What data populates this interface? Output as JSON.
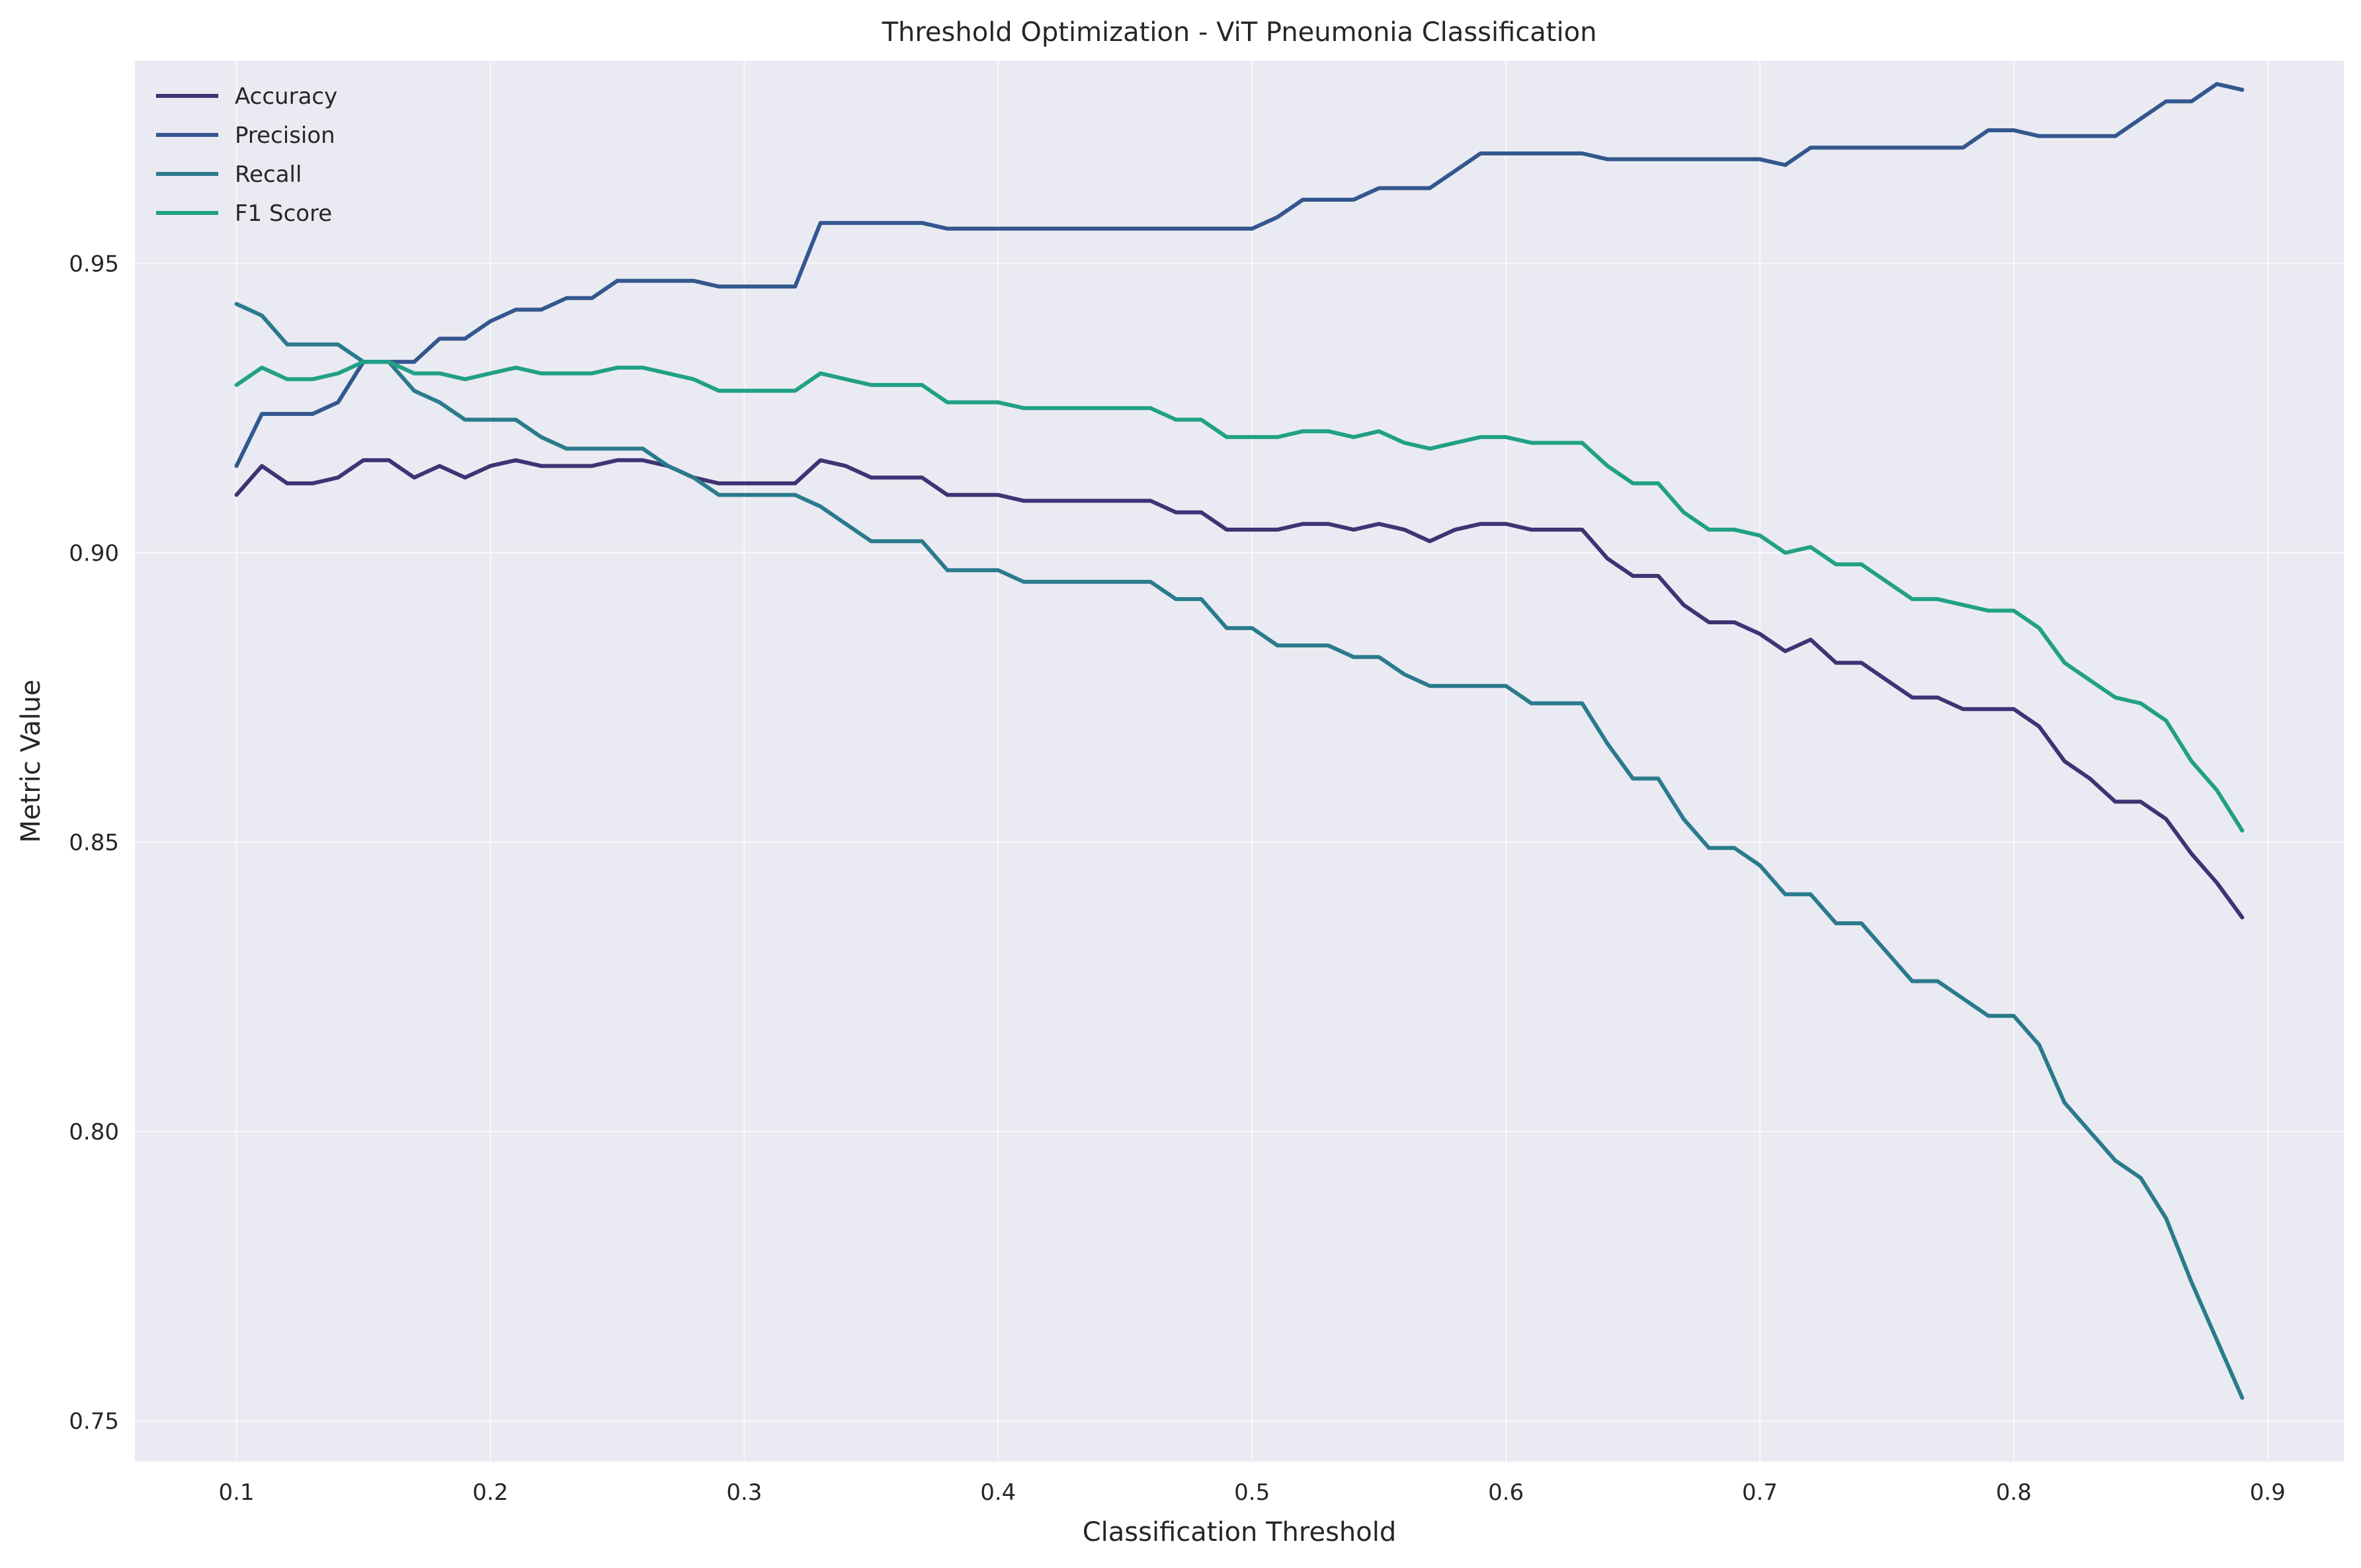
{
  "chart_data": {
    "type": "line",
    "title": "Threshold Optimization - ViT Pneumonia Classification",
    "xlabel": "Classification Threshold",
    "ylabel": "Metric Value",
    "xlim": [
      0.06,
      0.93
    ],
    "ylim": [
      0.743,
      0.985
    ],
    "xticks": [
      0.1,
      0.2,
      0.3,
      0.4,
      0.5,
      0.6,
      0.7,
      0.8,
      0.9
    ],
    "xtick_labels": [
      "0.1",
      "0.2",
      "0.3",
      "0.4",
      "0.5",
      "0.6",
      "0.7",
      "0.8",
      "0.9"
    ],
    "yticks": [
      0.75,
      0.8,
      0.85,
      0.9,
      0.95
    ],
    "ytick_labels": [
      "0.75",
      "0.80",
      "0.85",
      "0.90",
      "0.95"
    ],
    "grid": true,
    "legend_position": "top-left",
    "background_color": "#eaeaf2",
    "x": [
      0.1,
      0.11,
      0.12,
      0.13,
      0.14,
      0.15,
      0.16,
      0.17,
      0.18,
      0.19,
      0.2,
      0.21,
      0.22,
      0.23,
      0.24,
      0.25,
      0.26,
      0.27,
      0.28,
      0.29,
      0.3,
      0.31,
      0.32,
      0.33,
      0.34,
      0.35,
      0.36,
      0.37,
      0.38,
      0.39,
      0.4,
      0.41,
      0.42,
      0.43,
      0.44,
      0.45,
      0.46,
      0.47,
      0.48,
      0.49,
      0.5,
      0.51,
      0.52,
      0.53,
      0.54,
      0.55,
      0.56,
      0.57,
      0.58,
      0.59,
      0.6,
      0.61,
      0.62,
      0.63,
      0.64,
      0.65,
      0.66,
      0.67,
      0.68,
      0.69,
      0.7,
      0.71,
      0.72,
      0.73,
      0.74,
      0.75,
      0.76,
      0.77,
      0.78,
      0.79,
      0.8,
      0.81,
      0.82,
      0.83,
      0.84,
      0.85,
      0.86,
      0.87,
      0.88,
      0.89
    ],
    "series": [
      {
        "name": "Accuracy",
        "color": "#3e3374",
        "values": [
          0.91,
          0.915,
          0.912,
          0.912,
          0.913,
          0.916,
          0.916,
          0.913,
          0.915,
          0.913,
          0.915,
          0.916,
          0.915,
          0.915,
          0.915,
          0.916,
          0.916,
          0.915,
          0.913,
          0.912,
          0.912,
          0.912,
          0.912,
          0.916,
          0.915,
          0.913,
          0.913,
          0.913,
          0.91,
          0.91,
          0.91,
          0.909,
          0.909,
          0.909,
          0.909,
          0.909,
          0.909,
          0.907,
          0.907,
          0.904,
          0.904,
          0.904,
          0.905,
          0.905,
          0.904,
          0.905,
          0.904,
          0.902,
          0.904,
          0.905,
          0.905,
          0.904,
          0.904,
          0.904,
          0.899,
          0.896,
          0.896,
          0.891,
          0.888,
          0.888,
          0.886,
          0.883,
          0.885,
          0.881,
          0.881,
          0.878,
          0.875,
          0.875,
          0.873,
          0.873,
          0.873,
          0.87,
          0.864,
          0.861,
          0.857,
          0.857,
          0.854,
          0.848,
          0.843,
          0.837
        ]
      },
      {
        "name": "Precision",
        "color": "#33578e",
        "values": [
          0.915,
          0.924,
          0.924,
          0.924,
          0.926,
          0.933,
          0.933,
          0.933,
          0.937,
          0.937,
          0.94,
          0.942,
          0.942,
          0.944,
          0.944,
          0.947,
          0.947,
          0.947,
          0.947,
          0.946,
          0.946,
          0.946,
          0.946,
          0.957,
          0.957,
          0.957,
          0.957,
          0.957,
          0.956,
          0.956,
          0.956,
          0.956,
          0.956,
          0.956,
          0.956,
          0.956,
          0.956,
          0.956,
          0.956,
          0.956,
          0.956,
          0.958,
          0.961,
          0.961,
          0.961,
          0.963,
          0.963,
          0.963,
          0.966,
          0.969,
          0.969,
          0.969,
          0.969,
          0.969,
          0.968,
          0.968,
          0.968,
          0.968,
          0.968,
          0.968,
          0.968,
          0.967,
          0.97,
          0.97,
          0.97,
          0.97,
          0.97,
          0.97,
          0.97,
          0.973,
          0.973,
          0.972,
          0.972,
          0.972,
          0.972,
          0.975,
          0.978,
          0.978,
          0.981,
          0.98
        ]
      },
      {
        "name": "Recall",
        "color": "#2a7b8c",
        "values": [
          0.943,
          0.941,
          0.936,
          0.936,
          0.936,
          0.933,
          0.933,
          0.928,
          0.926,
          0.923,
          0.923,
          0.923,
          0.92,
          0.918,
          0.918,
          0.918,
          0.918,
          0.915,
          0.913,
          0.91,
          0.91,
          0.91,
          0.91,
          0.908,
          0.905,
          0.902,
          0.902,
          0.902,
          0.897,
          0.897,
          0.897,
          0.895,
          0.895,
          0.895,
          0.895,
          0.895,
          0.895,
          0.892,
          0.892,
          0.887,
          0.887,
          0.884,
          0.884,
          0.884,
          0.882,
          0.882,
          0.879,
          0.877,
          0.877,
          0.877,
          0.877,
          0.874,
          0.874,
          0.874,
          0.867,
          0.861,
          0.861,
          0.854,
          0.849,
          0.849,
          0.846,
          0.841,
          0.841,
          0.836,
          0.836,
          0.831,
          0.826,
          0.826,
          0.823,
          0.82,
          0.82,
          0.815,
          0.805,
          0.8,
          0.795,
          0.792,
          0.785,
          0.774,
          0.764,
          0.754
        ]
      },
      {
        "name": "F1 Score",
        "color": "#21a086",
        "values": [
          0.929,
          0.932,
          0.93,
          0.93,
          0.931,
          0.933,
          0.933,
          0.931,
          0.931,
          0.93,
          0.931,
          0.932,
          0.931,
          0.931,
          0.931,
          0.932,
          0.932,
          0.931,
          0.93,
          0.928,
          0.928,
          0.928,
          0.928,
          0.931,
          0.93,
          0.929,
          0.929,
          0.929,
          0.926,
          0.926,
          0.926,
          0.925,
          0.925,
          0.925,
          0.925,
          0.925,
          0.925,
          0.923,
          0.923,
          0.92,
          0.92,
          0.92,
          0.921,
          0.921,
          0.92,
          0.921,
          0.919,
          0.918,
          0.919,
          0.92,
          0.92,
          0.919,
          0.919,
          0.919,
          0.915,
          0.912,
          0.912,
          0.907,
          0.904,
          0.904,
          0.903,
          0.9,
          0.901,
          0.898,
          0.898,
          0.895,
          0.892,
          0.892,
          0.891,
          0.89,
          0.89,
          0.887,
          0.881,
          0.878,
          0.875,
          0.874,
          0.871,
          0.864,
          0.859,
          0.852
        ]
      }
    ]
  }
}
